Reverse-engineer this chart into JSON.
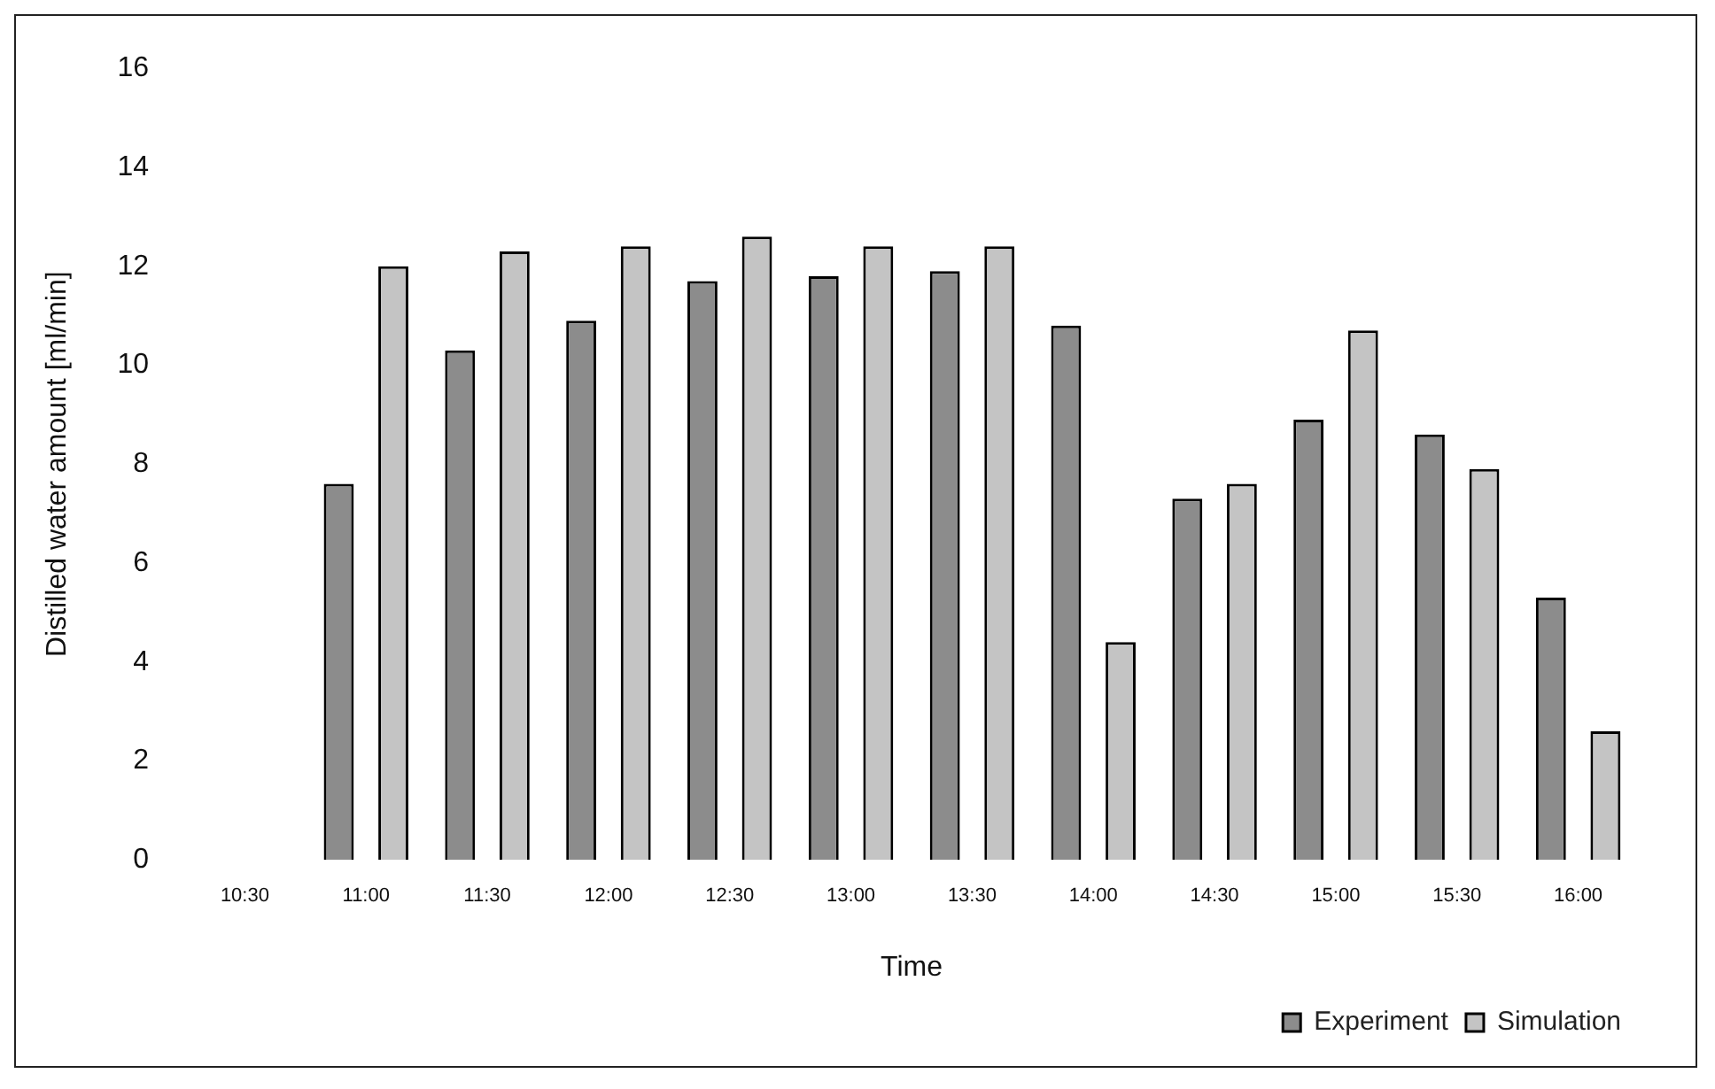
{
  "chart_data": {
    "type": "bar",
    "xlabel": "Time",
    "ylabel": "Distilled water amount [ml/min]",
    "categories": [
      "10:30",
      "11:00",
      "11:30",
      "12:00",
      "12:30",
      "13:00",
      "13:30",
      "14:00",
      "14:30",
      "15:00",
      "15:30",
      "16:00"
    ],
    "series": [
      {
        "name": "Experiment",
        "color": "#8c8c8c",
        "values": [
          0,
          7.6,
          10.3,
          10.9,
          11.7,
          11.8,
          11.9,
          10.8,
          7.3,
          8.9,
          8.6,
          5.3
        ]
      },
      {
        "name": "Simulation",
        "color": "#c4c4c4",
        "values": [
          0,
          12.0,
          12.3,
          12.4,
          12.6,
          12.4,
          12.4,
          4.4,
          7.6,
          10.7,
          7.9,
          2.6
        ]
      }
    ],
    "ylim": [
      0,
      16
    ],
    "yticks": [
      0,
      2,
      4,
      6,
      8,
      10,
      12,
      14,
      16
    ],
    "grid": false,
    "legend": "bottom right"
  }
}
